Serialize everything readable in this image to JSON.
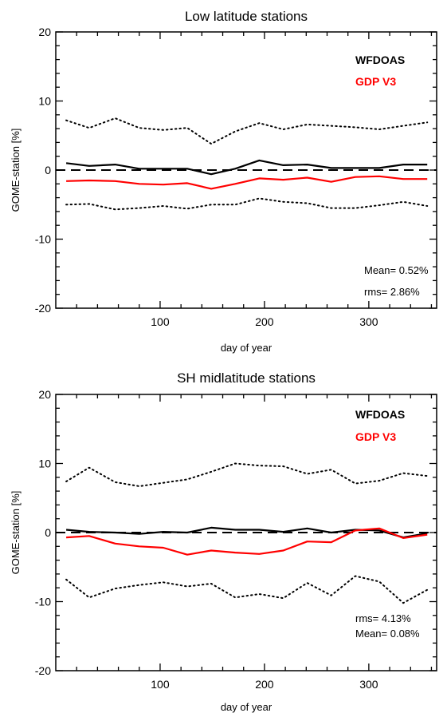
{
  "chart_data": [
    {
      "type": "line",
      "title": "Low latitude stations",
      "xlabel": "day of year",
      "ylabel": "GOME-station [%]",
      "xlim": [
        0,
        365
      ],
      "ylim": [
        -20,
        20
      ],
      "xticks": [
        100,
        200,
        300
      ],
      "yticks": [
        -20,
        -10,
        0,
        10,
        20
      ],
      "legend_placement": "top-right",
      "reference_line": 0,
      "x": [
        10,
        32,
        57,
        80,
        103,
        126,
        149,
        172,
        195,
        218,
        241,
        264,
        287,
        310,
        333,
        356
      ],
      "series": [
        {
          "name": "WFDOAS",
          "color": "#000000",
          "style": "solid",
          "values": [
            1.0,
            0.6,
            0.8,
            0.2,
            0.2,
            0.2,
            -0.6,
            0.2,
            1.4,
            0.7,
            0.8,
            0.3,
            0.3,
            0.3,
            0.8,
            0.8
          ]
        },
        {
          "name": "GDP V3",
          "color": "#ff0000",
          "style": "solid",
          "values": [
            -1.6,
            -1.5,
            -1.6,
            -2.0,
            -2.1,
            -1.9,
            -2.7,
            -2.0,
            -1.2,
            -1.4,
            -1.1,
            -1.7,
            -1.0,
            -0.9,
            -1.3,
            -1.3
          ]
        },
        {
          "name": "",
          "color": "#000000",
          "style": "dotted",
          "values": [
            7.2,
            6.1,
            7.5,
            6.1,
            5.8,
            6.1,
            3.8,
            5.6,
            6.8,
            5.9,
            6.6,
            6.4,
            6.2,
            5.9,
            6.4,
            6.9
          ]
        },
        {
          "name": "",
          "color": "#000000",
          "style": "dotted",
          "values": [
            -5.0,
            -4.9,
            -5.7,
            -5.5,
            -5.2,
            -5.6,
            -5.0,
            -5.0,
            -4.1,
            -4.6,
            -4.8,
            -5.5,
            -5.5,
            -5.1,
            -4.6,
            -5.2
          ]
        }
      ],
      "annotations": [
        {
          "label": "Mean= 0.52%"
        },
        {
          "label": "rms= 2.86%"
        }
      ]
    },
    {
      "type": "line",
      "title": "SH midlatitude stations",
      "xlabel": "day of year",
      "ylabel": "GOME-station [%]",
      "xlim": [
        0,
        365
      ],
      "ylim": [
        -20,
        20
      ],
      "xticks": [
        100,
        200,
        300
      ],
      "yticks": [
        -20,
        -10,
        0,
        10,
        20
      ],
      "legend_placement": "top-right",
      "reference_line": 0,
      "x": [
        10,
        32,
        57,
        80,
        103,
        126,
        149,
        172,
        195,
        218,
        241,
        264,
        287,
        310,
        333,
        356
      ],
      "series": [
        {
          "name": "WFDOAS",
          "color": "#000000",
          "style": "solid",
          "values": [
            0.4,
            0.1,
            0.0,
            -0.2,
            0.1,
            0.0,
            0.7,
            0.4,
            0.4,
            0.1,
            0.6,
            0.0,
            0.4,
            0.3,
            -0.7,
            -0.1
          ]
        },
        {
          "name": "GDP V3",
          "color": "#ff0000",
          "style": "solid",
          "values": [
            -0.7,
            -0.5,
            -1.6,
            -2.0,
            -2.2,
            -3.2,
            -2.6,
            -2.9,
            -3.1,
            -2.6,
            -1.3,
            -1.4,
            0.3,
            0.6,
            -0.8,
            -0.3
          ]
        },
        {
          "name": "",
          "color": "#000000",
          "style": "dotted",
          "values": [
            7.4,
            9.4,
            7.3,
            6.7,
            7.2,
            7.7,
            8.8,
            10.0,
            9.7,
            9.6,
            8.5,
            9.1,
            7.1,
            7.5,
            8.6,
            8.2
          ]
        },
        {
          "name": "",
          "color": "#000000",
          "style": "dotted",
          "values": [
            -6.8,
            -9.4,
            -8.1,
            -7.6,
            -7.2,
            -7.8,
            -7.4,
            -9.4,
            -8.9,
            -9.5,
            -7.3,
            -9.1,
            -6.3,
            -7.1,
            -10.2,
            -8.3
          ]
        }
      ],
      "annotations": [
        {
          "label": "rms= 4.13%"
        },
        {
          "label": "Mean= 0.08%"
        }
      ]
    }
  ]
}
